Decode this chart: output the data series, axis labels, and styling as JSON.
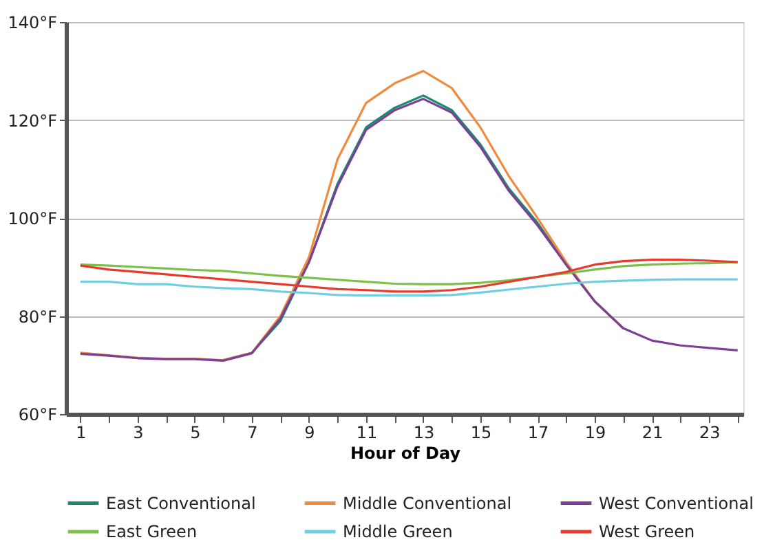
{
  "chart_data": {
    "type": "line",
    "xlabel": "Hour of Day",
    "x": [
      1,
      2,
      3,
      4,
      5,
      6,
      7,
      8,
      9,
      10,
      11,
      12,
      13,
      14,
      15,
      16,
      17,
      18,
      19,
      20,
      21,
      22,
      23,
      24
    ],
    "series": [
      {
        "name": "East Conventional",
        "color": "#1a8a6a",
        "values": [
          null,
          null,
          null,
          null,
          null,
          71,
          72.5,
          79,
          91,
          107,
          118.5,
          122.5,
          125,
          122,
          115,
          106,
          99,
          90.5,
          83,
          77.5,
          null,
          null,
          null,
          null
        ]
      },
      {
        "name": "Middle Conventional",
        "color": "#f08a3c",
        "values": [
          72.5,
          72,
          71.5,
          71.3,
          71.3,
          71,
          72.5,
          80,
          92,
          112,
          123.5,
          127.5,
          130,
          126.5,
          118.5,
          108.5,
          100,
          91,
          83,
          77.5,
          null,
          null,
          null,
          null
        ]
      },
      {
        "name": "West Conventional",
        "color": "#7b3f98",
        "values": [
          72.3,
          71.9,
          71.4,
          71.2,
          71.2,
          70.9,
          72.4,
          79.5,
          91,
          106.5,
          118,
          122,
          124.3,
          121.5,
          114.5,
          105.5,
          98.5,
          90.5,
          83,
          77.5,
          75,
          74,
          73.5,
          73
        ]
      },
      {
        "name": "East Green",
        "color": "#7cc04a",
        "values": [
          90.5,
          90.3,
          90,
          89.7,
          89.4,
          89.2,
          88.7,
          88.2,
          87.8,
          87.4,
          87,
          86.6,
          86.5,
          86.5,
          86.8,
          87.3,
          88,
          88.7,
          89.5,
          90.2,
          90.5,
          90.7,
          90.8,
          91
        ]
      },
      {
        "name": "Middle Green",
        "color": "#6fcfe0",
        "values": [
          87,
          87,
          86.5,
          86.5,
          86,
          85.7,
          85.5,
          85,
          84.7,
          84.3,
          84.2,
          84.2,
          84.2,
          84.3,
          84.8,
          85.4,
          86,
          86.6,
          87,
          87.2,
          87.4,
          87.5,
          87.5,
          87.5
        ]
      },
      {
        "name": "West Green",
        "color": "#e83a2c",
        "values": [
          90.3,
          89.5,
          89,
          88.5,
          88,
          87.5,
          87,
          86.5,
          86,
          85.5,
          85.3,
          85,
          85,
          85.3,
          86,
          87,
          88,
          89,
          90.5,
          91.2,
          91.5,
          91.5,
          91.3,
          91
        ]
      }
    ],
    "xlim": [
      0.5,
      24.2
    ],
    "xticks": [
      1,
      {
        "value": 2,
        "label": null
      },
      3,
      {
        "value": 4,
        "label": null
      },
      5,
      {
        "value": 6,
        "label": null
      },
      7,
      {
        "value": 8,
        "label": null
      },
      9,
      {
        "value": 10,
        "label": null
      },
      11,
      {
        "value": 12,
        "label": null
      },
      13,
      {
        "value": 14,
        "label": null
      },
      15,
      {
        "value": 16,
        "label": null
      },
      17,
      {
        "value": 18,
        "label": null
      },
      19,
      {
        "value": 20,
        "label": null
      },
      21,
      {
        "value": 22,
        "label": null
      },
      23,
      {
        "value": 24,
        "label": null
      }
    ],
    "ylim": [
      60,
      140
    ],
    "yticks": [
      {
        "value": 60,
        "label": "60°F"
      },
      {
        "value": 80,
        "label": "80°F"
      },
      {
        "value": 100,
        "label": "100°F"
      },
      {
        "value": 120,
        "label": "120°F"
      },
      {
        "value": 140,
        "label": "140°F"
      }
    ],
    "grid": "y",
    "legend": "bottom",
    "marker": "none",
    "line_style": "solid"
  }
}
